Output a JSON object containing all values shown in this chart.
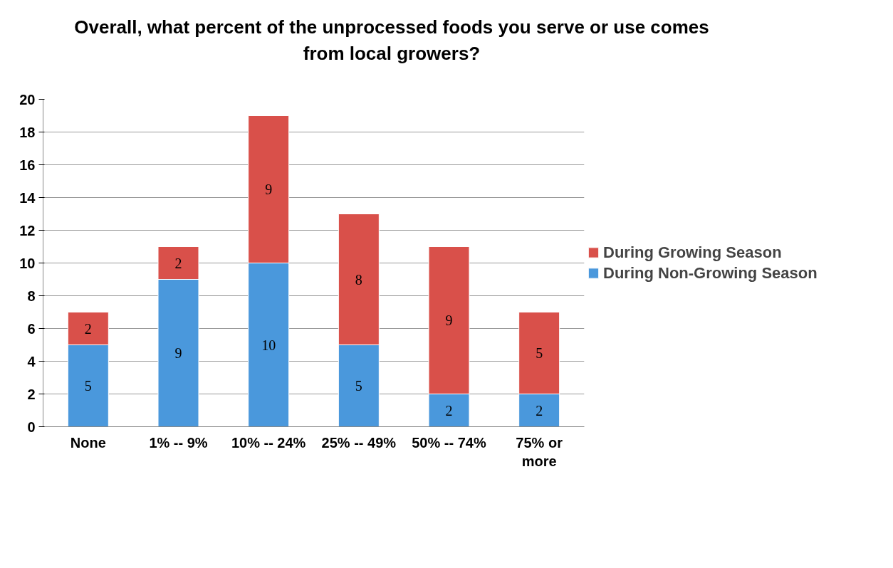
{
  "chart_data": {
    "type": "bar",
    "stacked": true,
    "title": "Overall, what percent of the unprocessed foods you serve or use comes from local growers?",
    "categories": [
      "None",
      "1% -- 9%",
      "10% -- 24%",
      "25% -- 49%",
      "50% -- 74%",
      "75% or more"
    ],
    "series": [
      {
        "name": "During Non-Growing Season",
        "color": "#4a98dc",
        "values": [
          5,
          9,
          10,
          5,
          2,
          2
        ]
      },
      {
        "name": "During Growing Season",
        "color": "#d9504a",
        "values": [
          2,
          2,
          9,
          8,
          9,
          5
        ]
      }
    ],
    "ylim": [
      0,
      20
    ],
    "yticks": [
      0,
      2,
      4,
      6,
      8,
      10,
      12,
      14,
      16,
      18,
      20
    ],
    "grid": "y",
    "legend": "right",
    "data_labels": true
  }
}
